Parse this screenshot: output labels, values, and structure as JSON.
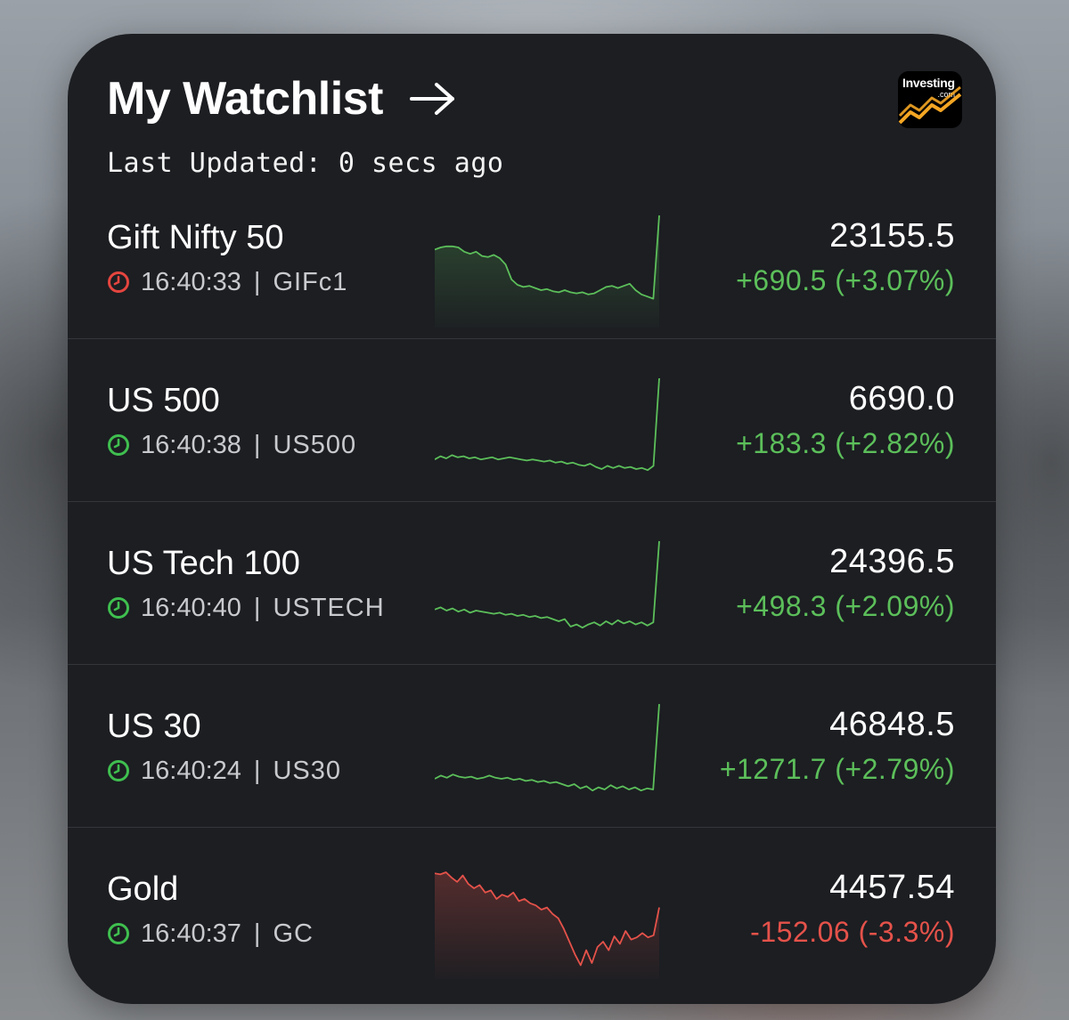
{
  "header": {
    "title": "My Watchlist",
    "subtitle": "Last Updated: 0 secs ago",
    "logo_text": "Investing",
    "logo_sub": ".com"
  },
  "colors": {
    "up": "#5cbf5a",
    "down": "#e5524a",
    "market_open_clock": "#3fbf4f",
    "market_closed_clock": "#e5453f"
  },
  "rows": [
    {
      "name": "Gift Nifty 50",
      "time": "16:40:33",
      "symbol": "GIFc1",
      "price": "23155.5",
      "change": "+690.5 (+3.07%)",
      "direction": "up",
      "clock_status": "closed",
      "sparkline": [
        0.68,
        0.7,
        0.71,
        0.71,
        0.7,
        0.66,
        0.64,
        0.66,
        0.62,
        0.61,
        0.63,
        0.6,
        0.54,
        0.4,
        0.35,
        0.33,
        0.34,
        0.32,
        0.3,
        0.31,
        0.29,
        0.28,
        0.3,
        0.28,
        0.27,
        0.28,
        0.26,
        0.27,
        0.3,
        0.33,
        0.34,
        0.32,
        0.34,
        0.36,
        0.3,
        0.26,
        0.24,
        0.22,
        1.0
      ],
      "spark_area": true
    },
    {
      "name": "US 500",
      "time": "16:40:38",
      "symbol": "US500",
      "price": "6690.0",
      "change": "+183.3 (+2.82%)",
      "direction": "up",
      "clock_status": "open",
      "sparkline": [
        0.24,
        0.27,
        0.25,
        0.28,
        0.26,
        0.27,
        0.25,
        0.26,
        0.24,
        0.25,
        0.26,
        0.24,
        0.25,
        0.26,
        0.25,
        0.24,
        0.23,
        0.24,
        0.23,
        0.22,
        0.23,
        0.21,
        0.22,
        0.2,
        0.21,
        0.19,
        0.18,
        0.2,
        0.17,
        0.15,
        0.18,
        0.16,
        0.18,
        0.16,
        0.17,
        0.15,
        0.16,
        0.14,
        0.18,
        1.0
      ],
      "spark_area": false
    },
    {
      "name": "US Tech 100",
      "time": "16:40:40",
      "symbol": "USTECH",
      "price": "24396.5",
      "change": "+498.3 (+2.09%)",
      "direction": "up",
      "clock_status": "open",
      "sparkline": [
        0.36,
        0.38,
        0.35,
        0.37,
        0.34,
        0.36,
        0.33,
        0.35,
        0.34,
        0.33,
        0.32,
        0.33,
        0.31,
        0.32,
        0.3,
        0.31,
        0.29,
        0.3,
        0.28,
        0.29,
        0.27,
        0.25,
        0.27,
        0.2,
        0.22,
        0.19,
        0.22,
        0.24,
        0.21,
        0.25,
        0.22,
        0.26,
        0.23,
        0.25,
        0.22,
        0.24,
        0.21,
        0.24,
        1.0
      ],
      "spark_area": false
    },
    {
      "name": "US 30",
      "time": "16:40:24",
      "symbol": "US30",
      "price": "46848.5",
      "change": "+1271.7 (+2.79%)",
      "direction": "up",
      "clock_status": "open",
      "sparkline": [
        0.3,
        0.33,
        0.31,
        0.34,
        0.32,
        0.31,
        0.32,
        0.3,
        0.31,
        0.33,
        0.31,
        0.3,
        0.31,
        0.29,
        0.3,
        0.28,
        0.29,
        0.27,
        0.28,
        0.26,
        0.27,
        0.25,
        0.23,
        0.25,
        0.21,
        0.23,
        0.19,
        0.22,
        0.2,
        0.24,
        0.21,
        0.23,
        0.2,
        0.22,
        0.19,
        0.21,
        0.2,
        1.0
      ],
      "spark_area": false
    },
    {
      "name": "Gold",
      "time": "16:40:37",
      "symbol": "GC",
      "price": "4457.54",
      "change": "-152.06 (-3.3%)",
      "direction": "down",
      "clock_status": "open",
      "sparkline": [
        0.94,
        0.93,
        0.95,
        0.9,
        0.86,
        0.92,
        0.84,
        0.8,
        0.83,
        0.76,
        0.78,
        0.7,
        0.74,
        0.72,
        0.76,
        0.68,
        0.7,
        0.66,
        0.64,
        0.6,
        0.62,
        0.56,
        0.52,
        0.42,
        0.3,
        0.18,
        0.08,
        0.22,
        0.1,
        0.25,
        0.3,
        0.22,
        0.35,
        0.28,
        0.4,
        0.32,
        0.34,
        0.38,
        0.34,
        0.36,
        0.62
      ],
      "spark_area": true
    }
  ]
}
